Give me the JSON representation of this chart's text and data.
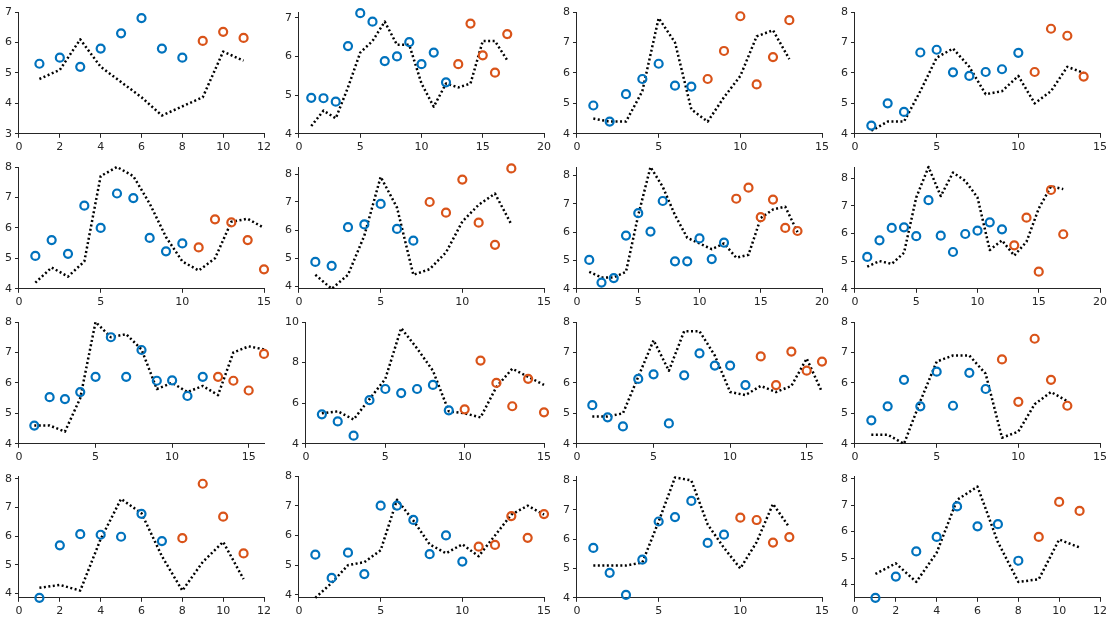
{
  "chart_data": [
    {
      "type": "scatter",
      "xlim": [
        0,
        12
      ],
      "xticks": [
        0,
        2,
        4,
        6,
        8,
        10,
        12
      ],
      "ylim": [
        3,
        7
      ],
      "yticks": [
        3,
        4,
        5,
        6,
        7
      ],
      "grid": false,
      "legend": false,
      "series": [
        {
          "type": "scatter",
          "marker": "circle",
          "color": "#0072bd",
          "x": [
            1,
            2,
            3,
            4,
            5,
            6,
            7,
            8
          ],
          "values": [
            5.3,
            5.5,
            5.2,
            5.8,
            6.3,
            6.8,
            5.8,
            5.5
          ]
        },
        {
          "type": "scatter",
          "marker": "circle",
          "color": "#d95319",
          "x": [
            9,
            10,
            11
          ],
          "values": [
            6.05,
            6.35,
            6.15
          ]
        },
        {
          "type": "line",
          "marker": "none",
          "line_style": "dotted",
          "color": "#000000",
          "x": [
            1,
            2,
            3,
            4,
            5,
            6,
            7,
            8,
            9,
            10,
            11
          ],
          "values": [
            4.8,
            5.1,
            6.1,
            5.2,
            4.7,
            4.2,
            3.6,
            3.9,
            4.2,
            5.7,
            5.4
          ]
        }
      ]
    },
    {
      "type": "scatter",
      "xlim": [
        0,
        20
      ],
      "xticks": [
        0,
        5,
        10,
        15,
        20
      ],
      "ylim": [
        4,
        7.15
      ],
      "yticks": [
        4,
        5,
        6,
        7
      ],
      "grid": false,
      "legend": false,
      "series": [
        {
          "type": "scatter",
          "marker": "circle",
          "color": "#0072bd",
          "x": [
            1,
            2,
            3,
            4,
            5,
            6,
            7,
            8,
            9,
            10,
            11,
            12
          ],
          "values": [
            4.93,
            4.92,
            4.83,
            6.27,
            7.12,
            6.9,
            5.88,
            6.0,
            6.37,
            5.8,
            6.1,
            5.33
          ]
        },
        {
          "type": "scatter",
          "marker": "circle",
          "color": "#d95319",
          "x": [
            13,
            14,
            15,
            16,
            17
          ],
          "values": [
            5.8,
            6.85,
            6.03,
            5.58,
            6.58
          ]
        },
        {
          "type": "line",
          "marker": "none",
          "line_style": "dotted",
          "color": "#000000",
          "x": [
            1,
            2,
            3,
            4,
            5,
            6,
            7,
            8,
            9,
            10,
            11,
            12,
            13,
            14,
            15,
            16,
            17
          ],
          "values": [
            4.2,
            4.6,
            4.4,
            5.2,
            6.1,
            6.4,
            6.9,
            6.3,
            6.3,
            5.3,
            4.7,
            5.3,
            5.2,
            5.3,
            6.4,
            6.4,
            5.9
          ]
        }
      ]
    },
    {
      "type": "scatter",
      "xlim": [
        0,
        15
      ],
      "xticks": [
        0,
        5,
        10,
        15
      ],
      "ylim": [
        4,
        8
      ],
      "yticks": [
        4,
        5,
        6,
        7,
        8
      ],
      "grid": false,
      "legend": false,
      "series": [
        {
          "type": "scatter",
          "marker": "circle",
          "color": "#0072bd",
          "x": [
            1,
            2,
            3,
            4,
            5,
            6,
            7
          ],
          "values": [
            4.93,
            4.4,
            5.3,
            5.8,
            6.3,
            5.58,
            5.55
          ]
        },
        {
          "type": "scatter",
          "marker": "circle",
          "color": "#d95319",
          "x": [
            8,
            9,
            10,
            11,
            12,
            13
          ],
          "values": [
            5.8,
            6.72,
            7.86,
            5.62,
            6.52,
            7.73
          ]
        },
        {
          "type": "line",
          "marker": "none",
          "line_style": "dotted",
          "color": "#000000",
          "x": [
            1,
            2,
            3,
            4,
            5,
            6,
            7,
            8,
            9,
            10,
            11,
            12,
            13
          ],
          "values": [
            4.5,
            4.4,
            4.4,
            5.4,
            7.8,
            7.0,
            4.8,
            4.4,
            5.2,
            5.9,
            7.2,
            7.4,
            6.45
          ]
        }
      ]
    },
    {
      "type": "scatter",
      "xlim": [
        0,
        15
      ],
      "xticks": [
        0,
        5,
        10,
        15
      ],
      "ylim": [
        4,
        8
      ],
      "yticks": [
        4,
        5,
        6,
        7,
        8
      ],
      "grid": false,
      "legend": false,
      "series": [
        {
          "type": "scatter",
          "marker": "circle",
          "color": "#0072bd",
          "x": [
            1,
            2,
            3,
            4,
            5,
            6,
            7,
            8,
            9,
            10
          ],
          "values": [
            4.27,
            5.0,
            4.72,
            6.67,
            6.76,
            6.02,
            5.9,
            6.03,
            6.12,
            6.66
          ]
        },
        {
          "type": "scatter",
          "marker": "circle",
          "color": "#d95319",
          "x": [
            11,
            12,
            13,
            14
          ],
          "values": [
            6.03,
            7.45,
            7.22,
            5.88
          ]
        },
        {
          "type": "line",
          "marker": "none",
          "line_style": "dotted",
          "color": "#000000",
          "x": [
            1,
            2,
            3,
            4,
            5,
            6,
            7,
            8,
            9,
            10,
            11,
            12,
            13,
            14
          ],
          "values": [
            4.1,
            4.4,
            4.4,
            5.4,
            6.5,
            6.8,
            6.2,
            5.3,
            5.4,
            5.9,
            5.0,
            5.4,
            6.2,
            6.0
          ]
        }
      ]
    },
    {
      "type": "scatter",
      "xlim": [
        0,
        15
      ],
      "xticks": [
        0,
        5,
        10,
        15
      ],
      "ylim": [
        4,
        8
      ],
      "yticks": [
        4,
        5,
        6,
        7,
        8
      ],
      "grid": false,
      "legend": false,
      "series": [
        {
          "type": "scatter",
          "marker": "circle",
          "color": "#0072bd",
          "x": [
            1,
            2,
            3,
            4,
            5,
            6,
            7,
            8,
            9,
            10
          ],
          "values": [
            5.08,
            5.6,
            5.15,
            6.73,
            6.0,
            7.13,
            6.98,
            5.67,
            5.23,
            5.49
          ]
        },
        {
          "type": "scatter",
          "marker": "circle",
          "color": "#d95319",
          "x": [
            11,
            12,
            13,
            14,
            15
          ],
          "values": [
            5.36,
            6.28,
            6.18,
            5.6,
            4.64
          ]
        },
        {
          "type": "line",
          "marker": "none",
          "line_style": "dotted",
          "color": "#000000",
          "x": [
            1,
            2,
            3,
            4,
            5,
            6,
            7,
            8,
            9,
            10,
            11,
            12,
            13,
            14,
            15
          ],
          "values": [
            4.2,
            4.7,
            4.4,
            4.9,
            7.7,
            8.0,
            7.7,
            6.8,
            5.7,
            4.9,
            4.6,
            5.0,
            6.2,
            6.3,
            6.0
          ]
        }
      ]
    },
    {
      "type": "scatter",
      "xlim": [
        0,
        15
      ],
      "xticks": [
        0,
        5,
        10,
        15
      ],
      "ylim": [
        3.9,
        8.25
      ],
      "yticks": [
        4,
        5,
        6,
        7,
        8
      ],
      "grid": false,
      "legend": false,
      "series": [
        {
          "type": "scatter",
          "marker": "circle",
          "color": "#0072bd",
          "x": [
            1,
            2,
            3,
            4,
            5,
            6,
            7
          ],
          "values": [
            4.86,
            4.72,
            6.1,
            6.2,
            6.93,
            6.04,
            5.62
          ]
        },
        {
          "type": "scatter",
          "marker": "circle",
          "color": "#d95319",
          "x": [
            8,
            9,
            10,
            11,
            12,
            13
          ],
          "values": [
            7.0,
            6.62,
            7.8,
            6.26,
            5.47,
            8.2
          ]
        },
        {
          "type": "line",
          "marker": "none",
          "line_style": "dotted",
          "color": "#000000",
          "x": [
            1,
            2,
            3,
            4,
            5,
            6,
            7,
            8,
            9,
            10,
            11,
            12,
            13
          ],
          "values": [
            4.4,
            3.9,
            4.4,
            5.8,
            7.9,
            6.8,
            4.4,
            4.6,
            5.2,
            6.3,
            6.9,
            7.3,
            6.2
          ]
        }
      ]
    },
    {
      "type": "scatter",
      "xlim": [
        0,
        20
      ],
      "xticks": [
        0,
        5,
        10,
        15,
        20
      ],
      "ylim": [
        4,
        8.3
      ],
      "yticks": [
        4,
        5,
        6,
        7,
        8
      ],
      "grid": false,
      "legend": false,
      "series": [
        {
          "type": "scatter",
          "marker": "circle",
          "color": "#0072bd",
          "x": [
            1,
            2,
            3,
            4,
            5,
            6,
            7,
            8,
            9,
            10,
            11,
            12
          ],
          "values": [
            5.02,
            4.22,
            4.38,
            5.88,
            6.67,
            6.02,
            7.1,
            4.97,
            4.97,
            5.78,
            5.05,
            5.63
          ]
        },
        {
          "type": "scatter",
          "marker": "circle",
          "color": "#d95319",
          "x": [
            13,
            14,
            15,
            16,
            17,
            18
          ],
          "values": [
            7.18,
            7.57,
            6.53,
            7.15,
            6.15,
            6.04
          ]
        },
        {
          "type": "line",
          "marker": "none",
          "line_style": "dotted",
          "color": "#000000",
          "x": [
            1,
            2,
            3,
            4,
            5,
            6,
            7,
            8,
            9,
            10,
            11,
            12,
            13,
            14,
            15,
            16,
            17,
            18
          ],
          "values": [
            4.6,
            4.4,
            4.4,
            4.6,
            6.6,
            8.3,
            7.6,
            6.6,
            5.8,
            5.6,
            5.4,
            5.6,
            5.1,
            5.2,
            6.5,
            6.8,
            6.9,
            6.0
          ]
        }
      ]
    },
    {
      "type": "scatter",
      "xlim": [
        0,
        20
      ],
      "xticks": [
        0,
        5,
        10,
        15,
        20
      ],
      "ylim": [
        4,
        8.4
      ],
      "yticks": [
        4,
        5,
        6,
        7,
        8
      ],
      "grid": false,
      "legend": false,
      "series": [
        {
          "type": "scatter",
          "marker": "circle",
          "color": "#0072bd",
          "x": [
            1,
            2,
            3,
            4,
            5,
            6,
            7,
            8,
            9,
            10,
            11,
            12
          ],
          "values": [
            5.15,
            5.75,
            6.2,
            6.22,
            5.9,
            7.2,
            5.92,
            5.33,
            5.98,
            6.1,
            6.4,
            6.15
          ]
        },
        {
          "type": "scatter",
          "marker": "circle",
          "color": "#d95319",
          "x": [
            13,
            14,
            15,
            16,
            17
          ],
          "values": [
            5.57,
            6.57,
            4.62,
            7.57,
            5.97
          ]
        },
        {
          "type": "line",
          "marker": "none",
          "line_style": "dotted",
          "color": "#000000",
          "x": [
            1,
            2,
            3,
            4,
            5,
            6,
            7,
            8,
            9,
            10,
            11,
            12,
            13,
            14,
            15,
            16,
            17
          ],
          "values": [
            4.8,
            5.0,
            4.9,
            5.3,
            7.3,
            8.4,
            7.35,
            8.2,
            7.9,
            7.3,
            5.4,
            5.75,
            5.2,
            5.7,
            6.9,
            7.7,
            7.6
          ]
        }
      ]
    },
    {
      "type": "scatter",
      "xlim": [
        0,
        16
      ],
      "xticks": [
        0,
        5,
        10,
        15
      ],
      "ylim": [
        4,
        8
      ],
      "yticks": [
        4,
        5,
        6,
        7,
        8
      ],
      "grid": false,
      "legend": false,
      "series": [
        {
          "type": "scatter",
          "marker": "circle",
          "color": "#0072bd",
          "x": [
            1,
            2,
            3,
            4,
            5,
            6,
            7,
            8,
            9,
            10,
            11,
            12
          ],
          "values": [
            4.6,
            5.53,
            5.47,
            5.7,
            6.2,
            7.5,
            6.2,
            7.08,
            6.07,
            6.08,
            5.57,
            6.2
          ]
        },
        {
          "type": "scatter",
          "marker": "circle",
          "color": "#d95319",
          "x": [
            13,
            14,
            15,
            16
          ],
          "values": [
            6.2,
            6.07,
            5.75,
            6.95
          ]
        },
        {
          "type": "line",
          "marker": "none",
          "line_style": "dotted",
          "color": "#000000",
          "x": [
            1,
            2,
            3,
            4,
            5,
            6,
            7,
            8,
            9,
            10,
            11,
            12,
            13,
            14,
            15,
            16
          ],
          "values": [
            4.6,
            4.6,
            4.4,
            5.5,
            8.0,
            7.5,
            7.6,
            7.1,
            5.8,
            6.0,
            5.7,
            5.9,
            5.6,
            7.0,
            7.2,
            7.1
          ]
        }
      ]
    },
    {
      "type": "scatter",
      "xlim": [
        0,
        15
      ],
      "xticks": [
        0,
        5,
        10,
        15
      ],
      "ylim": [
        4,
        10
      ],
      "yticks": [
        4,
        6,
        8,
        10
      ],
      "grid": false,
      "legend": false,
      "series": [
        {
          "type": "scatter",
          "marker": "circle",
          "color": "#0072bd",
          "x": [
            1,
            2,
            3,
            4,
            5,
            6,
            7,
            8,
            9
          ],
          "values": [
            5.45,
            5.1,
            4.4,
            6.15,
            6.7,
            6.5,
            6.7,
            6.9,
            5.65
          ]
        },
        {
          "type": "scatter",
          "marker": "circle",
          "color": "#d95319",
          "x": [
            10,
            11,
            12,
            13,
            14,
            15
          ],
          "values": [
            5.7,
            8.1,
            7.0,
            5.85,
            7.2,
            5.55
          ]
        },
        {
          "type": "line",
          "marker": "none",
          "line_style": "dotted",
          "color": "#000000",
          "x": [
            1,
            2,
            3,
            4,
            5,
            6,
            7,
            8,
            9,
            10,
            11,
            12,
            13,
            14,
            15
          ],
          "values": [
            5.5,
            5.6,
            5.2,
            6.2,
            7.2,
            9.7,
            8.7,
            7.6,
            5.6,
            5.5,
            5.3,
            6.8,
            7.7,
            7.3,
            6.9
          ]
        }
      ]
    },
    {
      "type": "scatter",
      "xlim": [
        0,
        16
      ],
      "xticks": [
        0,
        5,
        10,
        15
      ],
      "ylim": [
        4,
        8
      ],
      "yticks": [
        4,
        5,
        6,
        7,
        8
      ],
      "grid": false,
      "legend": false,
      "series": [
        {
          "type": "scatter",
          "marker": "circle",
          "color": "#0072bd",
          "x": [
            1,
            2,
            3,
            4,
            5,
            6,
            7,
            8,
            9,
            10,
            11
          ],
          "values": [
            5.27,
            4.87,
            4.57,
            6.13,
            6.28,
            4.67,
            6.25,
            6.97,
            6.57,
            6.57,
            5.93
          ]
        },
        {
          "type": "scatter",
          "marker": "circle",
          "color": "#d95319",
          "x": [
            12,
            13,
            14,
            15,
            16
          ],
          "values": [
            6.87,
            5.93,
            7.03,
            6.4,
            6.7
          ]
        },
        {
          "type": "line",
          "marker": "none",
          "line_style": "dotted",
          "color": "#000000",
          "x": [
            1,
            2,
            3,
            4,
            5,
            6,
            7,
            8,
            9,
            10,
            11,
            12,
            13,
            14,
            15,
            16
          ],
          "values": [
            4.9,
            4.9,
            5.0,
            6.2,
            7.4,
            6.4,
            7.7,
            7.7,
            6.9,
            5.7,
            5.6,
            5.9,
            5.7,
            5.9,
            6.8,
            5.7
          ]
        }
      ]
    },
    {
      "type": "scatter",
      "xlim": [
        0,
        15
      ],
      "xticks": [
        0,
        5,
        10,
        15
      ],
      "ylim": [
        4,
        8
      ],
      "yticks": [
        4,
        5,
        6,
        7,
        8
      ],
      "grid": false,
      "legend": false,
      "series": [
        {
          "type": "scatter",
          "marker": "circle",
          "color": "#0072bd",
          "x": [
            1,
            2,
            3,
            4,
            5,
            6,
            7,
            8
          ],
          "values": [
            4.77,
            5.23,
            6.1,
            5.23,
            6.37,
            5.25,
            6.33,
            5.8
          ]
        },
        {
          "type": "scatter",
          "marker": "circle",
          "color": "#d95319",
          "x": [
            9,
            10,
            11,
            12,
            13
          ],
          "values": [
            6.77,
            5.38,
            7.45,
            6.1,
            5.25
          ]
        },
        {
          "type": "line",
          "marker": "none",
          "line_style": "dotted",
          "color": "#000000",
          "x": [
            1,
            2,
            3,
            4,
            5,
            6,
            7,
            8,
            9,
            10,
            11,
            12,
            13
          ],
          "values": [
            4.3,
            4.3,
            4.0,
            5.4,
            6.7,
            6.9,
            6.9,
            6.3,
            4.2,
            4.4,
            5.3,
            5.7,
            5.4
          ]
        }
      ]
    },
    {
      "type": "scatter",
      "xlim": [
        0,
        12
      ],
      "xticks": [
        0,
        2,
        4,
        6,
        8,
        10,
        12
      ],
      "ylim": [
        3.85,
        8.1
      ],
      "yticks": [
        4,
        5,
        6,
        7,
        8
      ],
      "grid": false,
      "legend": false,
      "series": [
        {
          "type": "scatter",
          "marker": "circle",
          "color": "#0072bd",
          "x": [
            1,
            2,
            3,
            4,
            5,
            6,
            7
          ],
          "values": [
            3.85,
            5.68,
            6.07,
            6.05,
            5.98,
            6.78,
            5.83
          ]
        },
        {
          "type": "scatter",
          "marker": "circle",
          "color": "#d95319",
          "x": [
            8,
            9,
            10,
            11
          ],
          "values": [
            5.93,
            7.83,
            6.68,
            5.4
          ]
        },
        {
          "type": "line",
          "marker": "none",
          "line_style": "dotted",
          "color": "#000000",
          "x": [
            1,
            2,
            3,
            4,
            5,
            6,
            7,
            8,
            9,
            10,
            11
          ],
          "values": [
            4.2,
            4.3,
            4.1,
            5.9,
            7.3,
            6.8,
            5.3,
            4.1,
            5.1,
            5.8,
            4.5
          ]
        }
      ]
    },
    {
      "type": "scatter",
      "xlim": [
        0,
        15
      ],
      "xticks": [
        0,
        5,
        10,
        15
      ],
      "ylim": [
        3.9,
        8
      ],
      "yticks": [
        4,
        5,
        6,
        7,
        8
      ],
      "grid": false,
      "legend": false,
      "series": [
        {
          "type": "scatter",
          "marker": "circle",
          "color": "#0072bd",
          "x": [
            1,
            2,
            3,
            4,
            5,
            6,
            7,
            8,
            9,
            10
          ],
          "values": [
            5.35,
            4.57,
            5.42,
            4.7,
            7.0,
            7.0,
            6.52,
            5.37,
            6.0,
            5.12
          ]
        },
        {
          "type": "scatter",
          "marker": "circle",
          "color": "#d95319",
          "x": [
            11,
            12,
            13,
            14,
            15
          ],
          "values": [
            5.62,
            5.68,
            6.65,
            5.92,
            6.72
          ]
        },
        {
          "type": "line",
          "marker": "none",
          "line_style": "dotted",
          "color": "#000000",
          "x": [
            1,
            2,
            3,
            4,
            5,
            6,
            7,
            8,
            9,
            10,
            11,
            12,
            13,
            14,
            15
          ],
          "values": [
            3.9,
            4.4,
            5.0,
            5.1,
            5.5,
            7.2,
            6.5,
            5.7,
            5.4,
            5.7,
            5.3,
            6.0,
            6.7,
            7.0,
            6.7
          ]
        }
      ]
    },
    {
      "type": "scatter",
      "xlim": [
        0,
        15
      ],
      "xticks": [
        0,
        5,
        10,
        15
      ],
      "ylim": [
        4,
        8.15
      ],
      "yticks": [
        4,
        5,
        6,
        7,
        8
      ],
      "grid": false,
      "legend": false,
      "series": [
        {
          "type": "scatter",
          "marker": "circle",
          "color": "#0072bd",
          "x": [
            1,
            2,
            3,
            4,
            5,
            6,
            7,
            8,
            9
          ],
          "values": [
            5.7,
            4.85,
            4.1,
            5.3,
            6.6,
            6.75,
            7.3,
            5.87,
            6.15
          ]
        },
        {
          "type": "scatter",
          "marker": "circle",
          "color": "#d95319",
          "x": [
            10,
            11,
            12,
            13
          ],
          "values": [
            6.73,
            6.65,
            5.88,
            6.07
          ]
        },
        {
          "type": "line",
          "marker": "none",
          "line_style": "dotted",
          "color": "#000000",
          "x": [
            1,
            2,
            3,
            4,
            5,
            6,
            7,
            8,
            9,
            10,
            11,
            12,
            13
          ],
          "values": [
            5.1,
            5.1,
            5.1,
            5.2,
            6.6,
            8.1,
            8.0,
            6.5,
            5.7,
            5.0,
            5.9,
            7.2,
            6.4
          ]
        }
      ]
    },
    {
      "type": "scatter",
      "xlim": [
        0,
        12
      ],
      "xticks": [
        0,
        2,
        4,
        6,
        8,
        10,
        12
      ],
      "ylim": [
        3.5,
        8.1
      ],
      "yticks": [
        4,
        5,
        6,
        7,
        8
      ],
      "grid": false,
      "legend": false,
      "series": [
        {
          "type": "scatter",
          "marker": "circle",
          "color": "#0072bd",
          "x": [
            1,
            2,
            3,
            4,
            5,
            6,
            7,
            8
          ],
          "values": [
            3.5,
            4.3,
            5.25,
            5.8,
            6.95,
            6.2,
            6.28,
            4.9
          ]
        },
        {
          "type": "scatter",
          "marker": "circle",
          "color": "#d95319",
          "x": [
            9,
            10,
            11
          ],
          "values": [
            5.8,
            7.12,
            6.78
          ]
        },
        {
          "type": "line",
          "marker": "none",
          "line_style": "dotted",
          "color": "#000000",
          "x": [
            1,
            2,
            3,
            4,
            5,
            6,
            7,
            8,
            9,
            10,
            11
          ],
          "values": [
            4.4,
            4.8,
            4.1,
            5.2,
            7.2,
            7.7,
            5.6,
            4.1,
            4.2,
            5.7,
            5.4
          ]
        }
      ]
    }
  ]
}
